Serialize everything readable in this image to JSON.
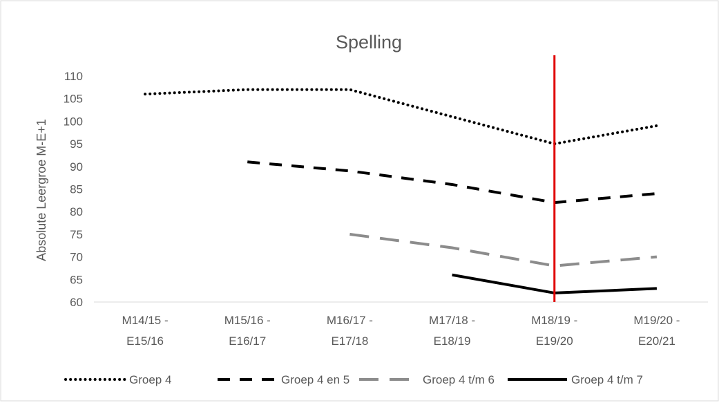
{
  "chart_data": {
    "type": "line",
    "title": "Spelling",
    "y_label": "Absolute Leergroe M-E+1",
    "categories": [
      "M14/15 - E15/16",
      "M15/16 - E16/17",
      "M16/17 - E17/18",
      "M17/18 - E18/19",
      "M18/19 - E19/20",
      "M19/20 - E20/21"
    ],
    "series": [
      {
        "name": "Groep 4",
        "color": "#000000",
        "line_style": "dotted",
        "values": [
          106,
          107,
          107,
          101,
          95,
          99
        ]
      },
      {
        "name": "Groep 4 en 5",
        "color": "#000000",
        "line_style": "dashed",
        "values": [
          null,
          91,
          89,
          86,
          82,
          84
        ]
      },
      {
        "name": "Groep 4 t/m 6",
        "color": "#8c8c8c",
        "line_style": "long-dashed",
        "values": [
          null,
          null,
          75,
          72,
          68,
          70
        ]
      },
      {
        "name": "Groep 4 t/m 7",
        "color": "#000000",
        "line_style": "solid",
        "values": [
          null,
          null,
          null,
          66,
          62,
          63
        ]
      }
    ],
    "ylim": [
      60,
      110
    ],
    "yticks": [
      60,
      65,
      70,
      75,
      80,
      85,
      90,
      95,
      100,
      105,
      110
    ],
    "vline": {
      "category": 4,
      "color": "#e00000"
    },
    "legend": "bottom"
  }
}
